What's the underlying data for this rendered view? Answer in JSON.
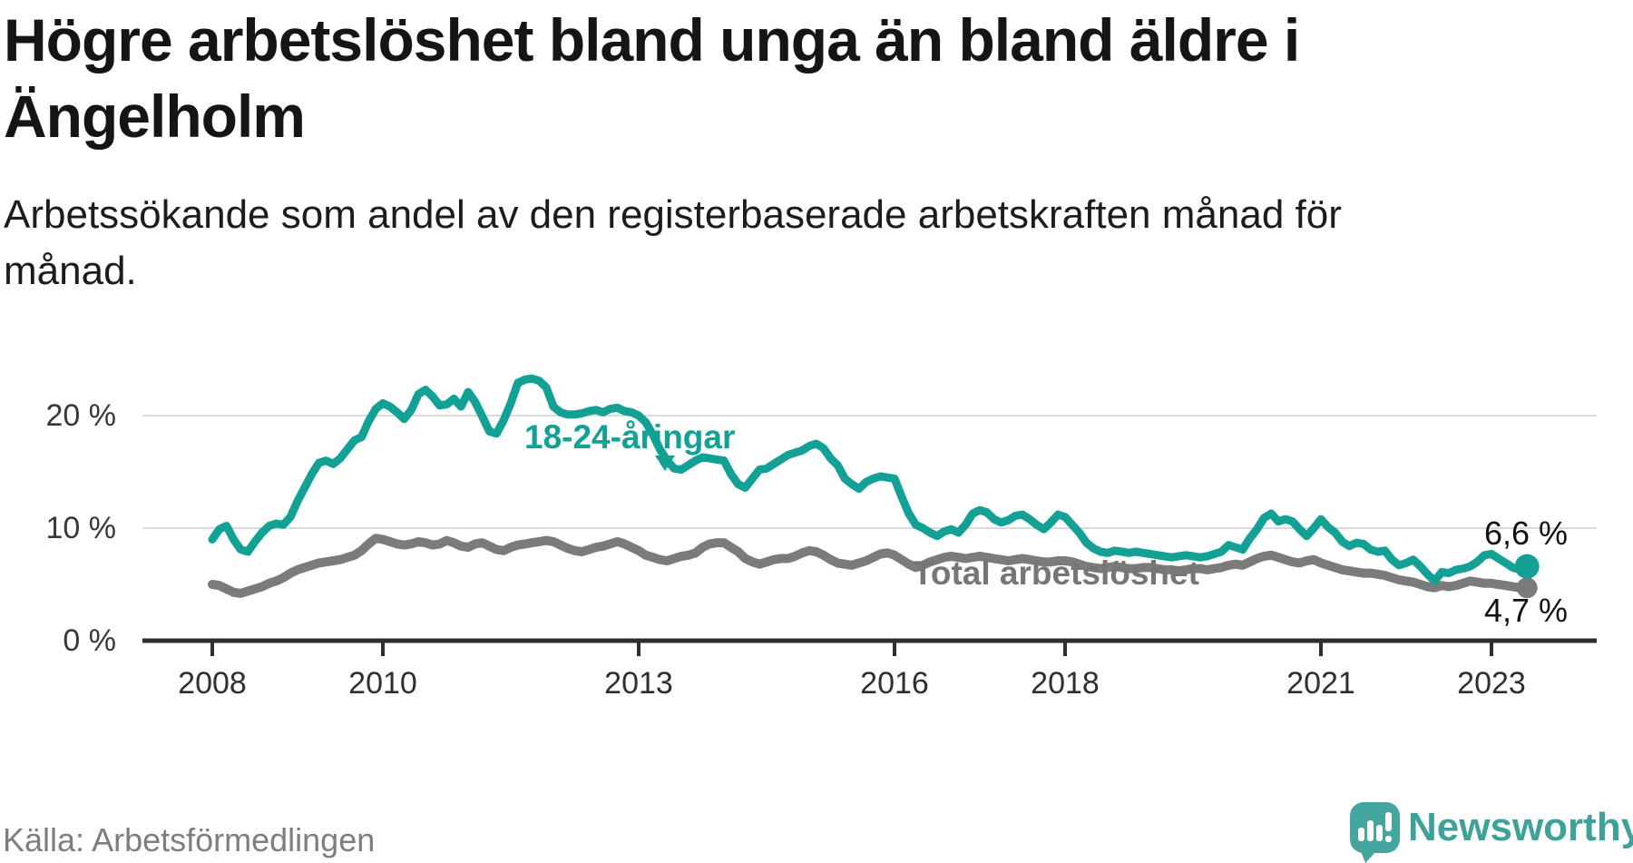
{
  "title": "Högre arbetslöshet bland unga än bland äldre i Ängelholm",
  "subtitle": "Arbetssökande som andel av den registerbaserade arbetskraften månad för månad.",
  "source": "Källa: Arbetsförmedlingen",
  "branding": {
    "name": "Newsworthy",
    "logo_icon": "speech-bubble-bar-chart-icon"
  },
  "annotations": {
    "youth_last": "6,6 %",
    "total_last": "4,7 %"
  },
  "series_labels": {
    "youth": "18-24-åringar",
    "total": "Total arbetslöshet"
  },
  "colors": {
    "youth_line": "#12a194",
    "total_line": "#7b7b7b",
    "total_label": "#767676",
    "gridline": "#dadada",
    "axis": "#2e2e2e",
    "brand_teal": "#3fa29a"
  },
  "chart_data": {
    "type": "line",
    "title": "Högre arbetslöshet bland unga än bland äldre i Ängelholm",
    "subtitle": "Arbetssökande som andel av den registerbaserade arbetskraften månad för månad.",
    "x_unit": "month",
    "x_range": [
      "2008-01",
      "2023-06"
    ],
    "x_start_year": 2008,
    "ylim": [
      0,
      24
    ],
    "grid": "horizontal-only",
    "legend": "inline-labels",
    "x_ticks": [
      {
        "year": 2008,
        "label": "2008"
      },
      {
        "year": 2010,
        "label": "2010"
      },
      {
        "year": 2013,
        "label": "2013"
      },
      {
        "year": 2016,
        "label": "2016"
      },
      {
        "year": 2018,
        "label": "2018"
      },
      {
        "year": 2021,
        "label": "2021"
      },
      {
        "year": 2023,
        "label": "2023"
      }
    ],
    "y_ticks": [
      {
        "value": 0,
        "label": "0 %"
      },
      {
        "value": 10,
        "label": "10 %"
      },
      {
        "value": 20,
        "label": "20 %"
      }
    ],
    "series": [
      {
        "name": "18-24-åringar",
        "color": "#12a194",
        "last_value_label": "6,6 %",
        "values": [
          9.0,
          9.9,
          10.2,
          9.0,
          8.1,
          7.9,
          8.8,
          9.6,
          10.2,
          10.4,
          10.3,
          11.0,
          12.4,
          13.6,
          14.8,
          15.8,
          16.0,
          15.7,
          16.2,
          17.0,
          17.8,
          18.1,
          19.5,
          20.6,
          21.1,
          20.8,
          20.3,
          19.7,
          20.5,
          21.9,
          22.3,
          21.7,
          20.9,
          21.0,
          21.5,
          20.8,
          22.1,
          21.2,
          19.9,
          18.6,
          18.4,
          19.6,
          21.1,
          22.9,
          23.2,
          23.3,
          23.1,
          22.5,
          20.8,
          20.3,
          20.1,
          20.1,
          20.2,
          20.4,
          20.5,
          20.3,
          20.6,
          20.7,
          20.4,
          20.3,
          20.0,
          19.4,
          18.3,
          17.0,
          16.0,
          15.3,
          15.2,
          15.6,
          16.0,
          16.3,
          16.2,
          16.1,
          16.0,
          14.8,
          13.9,
          13.6,
          14.4,
          15.2,
          15.3,
          15.7,
          16.1,
          16.5,
          16.7,
          16.9,
          17.3,
          17.5,
          17.1,
          16.2,
          15.6,
          14.4,
          13.9,
          13.5,
          14.1,
          14.4,
          14.6,
          14.5,
          14.4,
          12.8,
          11.3,
          10.3,
          10.0,
          9.6,
          9.3,
          9.7,
          9.9,
          9.6,
          10.3,
          11.3,
          11.6,
          11.4,
          10.8,
          10.5,
          10.7,
          11.1,
          11.2,
          10.8,
          10.3,
          9.9,
          10.5,
          11.2,
          11.0,
          10.3,
          9.6,
          8.7,
          8.2,
          7.9,
          7.8,
          8.0,
          7.9,
          7.8,
          7.9,
          7.8,
          7.7,
          7.6,
          7.5,
          7.4,
          7.5,
          7.6,
          7.5,
          7.4,
          7.5,
          7.7,
          7.9,
          8.5,
          8.3,
          8.1,
          9.1,
          9.9,
          10.9,
          11.3,
          10.6,
          10.8,
          10.6,
          9.9,
          9.3,
          10.0,
          10.8,
          10.1,
          9.6,
          8.8,
          8.4,
          8.7,
          8.6,
          8.1,
          7.9,
          8.0,
          7.2,
          6.7,
          6.9,
          7.2,
          6.6,
          5.9,
          5.3,
          6.1,
          6.0,
          6.3,
          6.4,
          6.6,
          7.0,
          7.6,
          7.7,
          7.3,
          6.9,
          6.5,
          6.3,
          6.6
        ]
      },
      {
        "name": "Total arbetslöshet",
        "color": "#7b7b7b",
        "last_value_label": "4,7 %",
        "values": [
          5.0,
          4.9,
          4.6,
          4.3,
          4.2,
          4.4,
          4.6,
          4.8,
          5.1,
          5.3,
          5.6,
          6.0,
          6.3,
          6.5,
          6.7,
          6.9,
          7.0,
          7.1,
          7.2,
          7.4,
          7.6,
          8.0,
          8.6,
          9.1,
          9.0,
          8.8,
          8.6,
          8.5,
          8.6,
          8.8,
          8.7,
          8.5,
          8.6,
          8.9,
          8.7,
          8.4,
          8.3,
          8.6,
          8.7,
          8.4,
          8.1,
          8.0,
          8.3,
          8.5,
          8.6,
          8.7,
          8.8,
          8.9,
          8.8,
          8.5,
          8.2,
          8.0,
          7.9,
          8.1,
          8.3,
          8.4,
          8.6,
          8.8,
          8.6,
          8.3,
          8.0,
          7.6,
          7.4,
          7.2,
          7.1,
          7.3,
          7.5,
          7.6,
          7.8,
          8.3,
          8.6,
          8.7,
          8.7,
          8.3,
          7.9,
          7.3,
          7.0,
          6.8,
          7.0,
          7.2,
          7.3,
          7.3,
          7.5,
          7.8,
          8.0,
          7.9,
          7.6,
          7.2,
          6.9,
          6.8,
          6.7,
          6.9,
          7.1,
          7.4,
          7.7,
          7.8,
          7.6,
          7.2,
          6.8,
          6.5,
          6.7,
          7.0,
          7.2,
          7.4,
          7.5,
          7.4,
          7.3,
          7.4,
          7.5,
          7.4,
          7.3,
          7.2,
          7.1,
          7.2,
          7.3,
          7.2,
          7.1,
          7.0,
          7.0,
          7.1,
          7.1,
          7.0,
          6.8,
          6.6,
          6.5,
          6.4,
          6.5,
          6.6,
          6.5,
          6.4,
          6.4,
          6.5,
          6.5,
          6.4,
          6.3,
          6.3,
          6.2,
          6.3,
          6.4,
          6.4,
          6.3,
          6.4,
          6.5,
          6.7,
          6.8,
          6.7,
          7.0,
          7.3,
          7.5,
          7.6,
          7.4,
          7.2,
          7.0,
          6.9,
          7.1,
          7.2,
          6.9,
          6.7,
          6.5,
          6.3,
          6.2,
          6.1,
          6.0,
          6.0,
          5.9,
          5.8,
          5.6,
          5.4,
          5.3,
          5.2,
          5.0,
          4.8,
          4.7,
          4.9,
          4.8,
          4.9,
          5.1,
          5.3,
          5.2,
          5.1,
          5.1,
          5.0,
          4.9,
          4.8,
          4.7,
          4.7
        ]
      }
    ]
  }
}
